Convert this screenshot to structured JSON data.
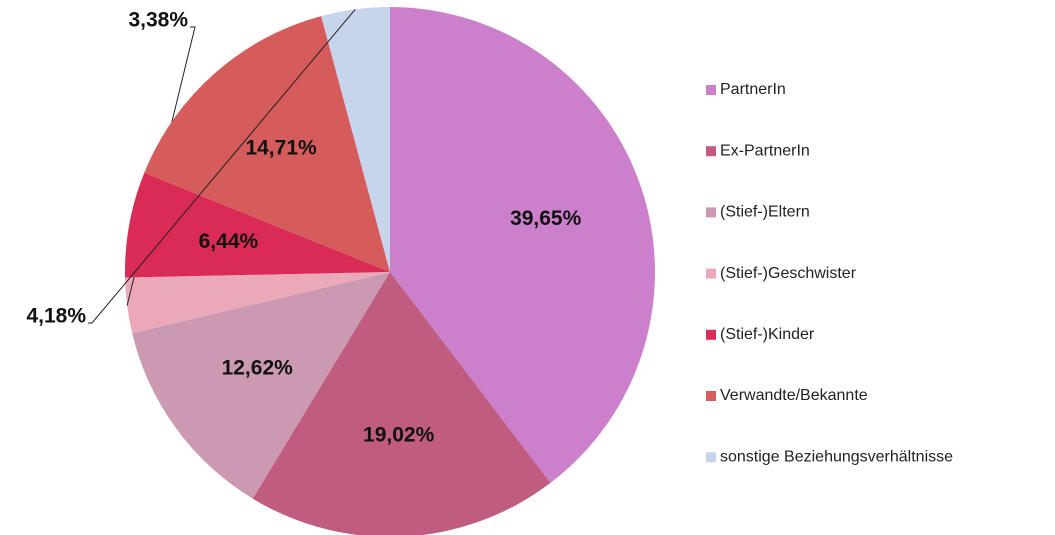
{
  "chart_data": {
    "type": "pie",
    "categories": [
      "PartnerIn",
      "Ex-PartnerIn",
      "(Stief-)Eltern",
      "(Stief-)Geschwister",
      "(Stief-)Kinder",
      "Verwandte/Bekannte",
      "sonstige Beziehungsverhältnisse"
    ],
    "values": [
      39.65,
      19.02,
      12.62,
      3.38,
      6.44,
      14.71,
      4.18
    ],
    "value_labels": [
      "39,65%",
      "19,02%",
      "12,62%",
      "3,38%",
      "6,44%",
      "14,71%",
      "4,18%"
    ],
    "colors": [
      "#cc80cc",
      "#bf5c80",
      "#cc99b3",
      "#eba8b8",
      "#d92b55",
      "#d65c5c",
      "#c6d5ec"
    ],
    "legend": "right"
  }
}
